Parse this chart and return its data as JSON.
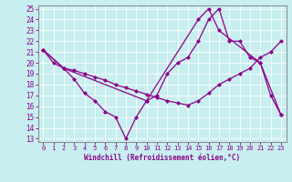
{
  "xlabel": "Windchill (Refroidissement éolien,°C)",
  "x_values": [
    0,
    1,
    2,
    3,
    4,
    5,
    6,
    7,
    8,
    9,
    10,
    11,
    12,
    13,
    14,
    15,
    16,
    17,
    18,
    19,
    20,
    21,
    22,
    23
  ],
  "line_flat": {
    "x": [
      0,
      1,
      2,
      3,
      4,
      5,
      6,
      7,
      8,
      9,
      10,
      11,
      12,
      13,
      14,
      15,
      16,
      17,
      18,
      19,
      20,
      21,
      22,
      23
    ],
    "y": [
      21.2,
      20.0,
      19.5,
      19.3,
      19.0,
      18.7,
      18.4,
      18.0,
      17.7,
      17.4,
      17.1,
      16.8,
      16.5,
      16.3,
      16.1,
      16.5,
      17.2,
      18.0,
      18.5,
      19.0,
      19.5,
      20.5,
      21.0,
      22.0
    ]
  },
  "line_peak": {
    "x": [
      0,
      2,
      10,
      15,
      16,
      17,
      21,
      23
    ],
    "y": [
      21.2,
      19.5,
      16.5,
      24.0,
      25.0,
      23.0,
      20.0,
      15.2
    ]
  },
  "line_valley": {
    "x": [
      0,
      2,
      3,
      4,
      5,
      6,
      7,
      8,
      9,
      10,
      11,
      12,
      13,
      14,
      15,
      16,
      17,
      18,
      19,
      20,
      21,
      22,
      23
    ],
    "y": [
      21.2,
      19.5,
      18.5,
      17.2,
      16.5,
      15.5,
      15.0,
      13.0,
      15.0,
      16.5,
      17.0,
      19.0,
      20.0,
      20.5,
      22.0,
      24.0,
      25.0,
      22.0,
      22.0,
      20.5,
      20.0,
      17.0,
      15.2
    ]
  },
  "ylim": [
    13,
    25
  ],
  "xlim": [
    -0.5,
    23.5
  ],
  "yticks": [
    13,
    14,
    15,
    16,
    17,
    18,
    19,
    20,
    21,
    22,
    23,
    24,
    25
  ],
  "xticks": [
    0,
    1,
    2,
    3,
    4,
    5,
    6,
    7,
    8,
    9,
    10,
    11,
    12,
    13,
    14,
    15,
    16,
    17,
    18,
    19,
    20,
    21,
    22,
    23
  ],
  "line_color": "#8b008b",
  "bg_color": "#c8eef0",
  "grid_color": "#b0dde0",
  "spine_color": "#7a7a7a"
}
